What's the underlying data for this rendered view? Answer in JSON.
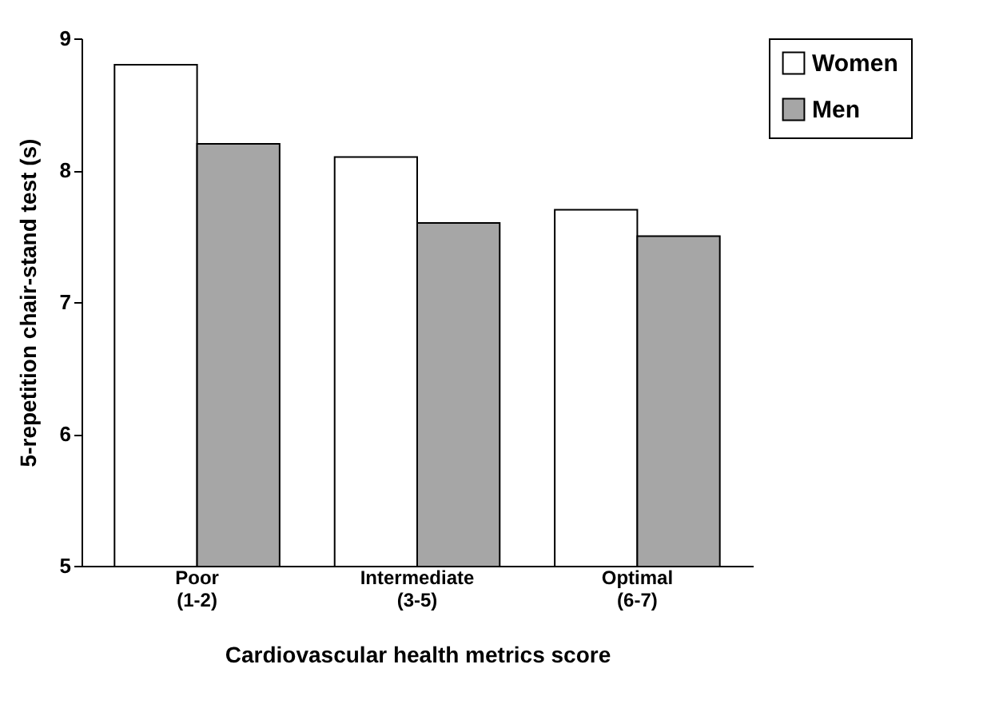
{
  "chart_data": {
    "type": "bar",
    "xlabel": "Cardiovascular health metrics score",
    "ylabel": "5-repetition chair-stand test (s)",
    "categories": [
      "Poor\n(1-2)",
      "Intermediate\n(3-5)",
      "Optimal\n(6-7)"
    ],
    "series": [
      {
        "name": "Women",
        "color": "#ffffff",
        "values": [
          8.8,
          8.1,
          7.7
        ]
      },
      {
        "name": "Men",
        "color": "#a6a6a6",
        "values": [
          8.2,
          7.6,
          7.5
        ]
      }
    ],
    "ylim": [
      5,
      9
    ],
    "yticks": [
      5,
      6,
      7,
      8,
      9
    ],
    "grid": false,
    "legend": "right"
  }
}
